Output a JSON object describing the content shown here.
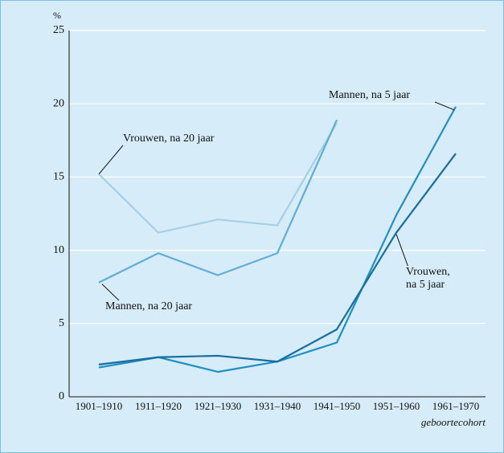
{
  "chart_data": {
    "type": "line",
    "y_unit_label": "%",
    "x_label": "geboortecohort",
    "categories": [
      "1901–1910",
      "1911–1920",
      "1921–1930",
      "1931–1940",
      "1941–1950",
      "1951–1960",
      "1961–1970"
    ],
    "series": [
      {
        "name": "Vrouwen, na 20 jaar",
        "color": "#a4d0e6",
        "values": [
          15.2,
          11.2,
          12.1,
          11.7,
          18.7,
          null,
          null
        ]
      },
      {
        "name": "Mannen, na 20 jaar",
        "color": "#5eaed6",
        "values": [
          7.8,
          9.8,
          8.3,
          9.8,
          18.9,
          null,
          null
        ]
      },
      {
        "name": "Mannen, na 5 jaar",
        "color": "#1f8fc4",
        "values": [
          2.0,
          2.7,
          1.7,
          2.4,
          3.7,
          12.4,
          19.8
        ]
      },
      {
        "name": "Vrouwen, na 5 jaar",
        "color": "#156e9e",
        "values": [
          2.2,
          2.7,
          2.8,
          2.4,
          4.6,
          11.2,
          16.6
        ]
      }
    ],
    "ylim": [
      0,
      25
    ],
    "yticks": [
      0,
      5,
      10,
      15,
      20,
      25
    ],
    "grid": true
  }
}
